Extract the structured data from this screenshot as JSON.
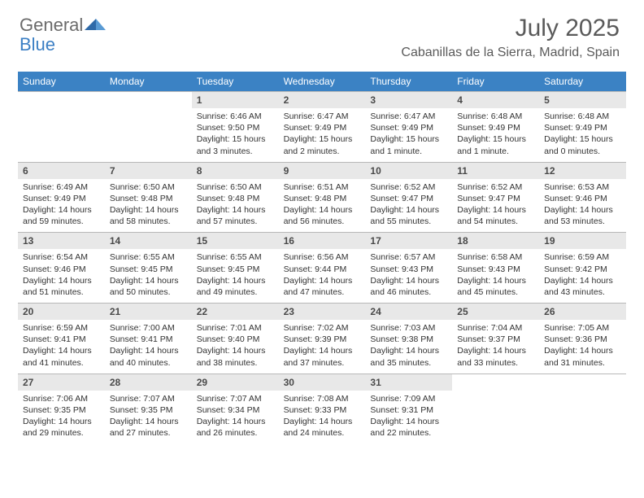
{
  "logo": {
    "general": "General",
    "blue": "Blue"
  },
  "title": "July 2025",
  "location": "Cabanillas de la Sierra, Madrid, Spain",
  "colors": {
    "header_bg": "#3b82c4",
    "header_text": "#ffffff",
    "daynum_bg": "#e8e8e8",
    "daynum_text": "#4a4a4a",
    "body_text": "#333333",
    "title_text": "#5a5a5a",
    "logo_gray": "#6b6b6b",
    "logo_blue": "#3b7fc4",
    "border": "#b8b8b8"
  },
  "weekdays": [
    "Sunday",
    "Monday",
    "Tuesday",
    "Wednesday",
    "Thursday",
    "Friday",
    "Saturday"
  ],
  "weeks": [
    [
      {
        "empty": true
      },
      {
        "empty": true
      },
      {
        "day": "1",
        "sunrise": "Sunrise: 6:46 AM",
        "sunset": "Sunset: 9:50 PM",
        "daylight": "Daylight: 15 hours and 3 minutes."
      },
      {
        "day": "2",
        "sunrise": "Sunrise: 6:47 AM",
        "sunset": "Sunset: 9:49 PM",
        "daylight": "Daylight: 15 hours and 2 minutes."
      },
      {
        "day": "3",
        "sunrise": "Sunrise: 6:47 AM",
        "sunset": "Sunset: 9:49 PM",
        "daylight": "Daylight: 15 hours and 1 minute."
      },
      {
        "day": "4",
        "sunrise": "Sunrise: 6:48 AM",
        "sunset": "Sunset: 9:49 PM",
        "daylight": "Daylight: 15 hours and 1 minute."
      },
      {
        "day": "5",
        "sunrise": "Sunrise: 6:48 AM",
        "sunset": "Sunset: 9:49 PM",
        "daylight": "Daylight: 15 hours and 0 minutes."
      }
    ],
    [
      {
        "day": "6",
        "sunrise": "Sunrise: 6:49 AM",
        "sunset": "Sunset: 9:49 PM",
        "daylight": "Daylight: 14 hours and 59 minutes."
      },
      {
        "day": "7",
        "sunrise": "Sunrise: 6:50 AM",
        "sunset": "Sunset: 9:48 PM",
        "daylight": "Daylight: 14 hours and 58 minutes."
      },
      {
        "day": "8",
        "sunrise": "Sunrise: 6:50 AM",
        "sunset": "Sunset: 9:48 PM",
        "daylight": "Daylight: 14 hours and 57 minutes."
      },
      {
        "day": "9",
        "sunrise": "Sunrise: 6:51 AM",
        "sunset": "Sunset: 9:48 PM",
        "daylight": "Daylight: 14 hours and 56 minutes."
      },
      {
        "day": "10",
        "sunrise": "Sunrise: 6:52 AM",
        "sunset": "Sunset: 9:47 PM",
        "daylight": "Daylight: 14 hours and 55 minutes."
      },
      {
        "day": "11",
        "sunrise": "Sunrise: 6:52 AM",
        "sunset": "Sunset: 9:47 PM",
        "daylight": "Daylight: 14 hours and 54 minutes."
      },
      {
        "day": "12",
        "sunrise": "Sunrise: 6:53 AM",
        "sunset": "Sunset: 9:46 PM",
        "daylight": "Daylight: 14 hours and 53 minutes."
      }
    ],
    [
      {
        "day": "13",
        "sunrise": "Sunrise: 6:54 AM",
        "sunset": "Sunset: 9:46 PM",
        "daylight": "Daylight: 14 hours and 51 minutes."
      },
      {
        "day": "14",
        "sunrise": "Sunrise: 6:55 AM",
        "sunset": "Sunset: 9:45 PM",
        "daylight": "Daylight: 14 hours and 50 minutes."
      },
      {
        "day": "15",
        "sunrise": "Sunrise: 6:55 AM",
        "sunset": "Sunset: 9:45 PM",
        "daylight": "Daylight: 14 hours and 49 minutes."
      },
      {
        "day": "16",
        "sunrise": "Sunrise: 6:56 AM",
        "sunset": "Sunset: 9:44 PM",
        "daylight": "Daylight: 14 hours and 47 minutes."
      },
      {
        "day": "17",
        "sunrise": "Sunrise: 6:57 AM",
        "sunset": "Sunset: 9:43 PM",
        "daylight": "Daylight: 14 hours and 46 minutes."
      },
      {
        "day": "18",
        "sunrise": "Sunrise: 6:58 AM",
        "sunset": "Sunset: 9:43 PM",
        "daylight": "Daylight: 14 hours and 45 minutes."
      },
      {
        "day": "19",
        "sunrise": "Sunrise: 6:59 AM",
        "sunset": "Sunset: 9:42 PM",
        "daylight": "Daylight: 14 hours and 43 minutes."
      }
    ],
    [
      {
        "day": "20",
        "sunrise": "Sunrise: 6:59 AM",
        "sunset": "Sunset: 9:41 PM",
        "daylight": "Daylight: 14 hours and 41 minutes."
      },
      {
        "day": "21",
        "sunrise": "Sunrise: 7:00 AM",
        "sunset": "Sunset: 9:41 PM",
        "daylight": "Daylight: 14 hours and 40 minutes."
      },
      {
        "day": "22",
        "sunrise": "Sunrise: 7:01 AM",
        "sunset": "Sunset: 9:40 PM",
        "daylight": "Daylight: 14 hours and 38 minutes."
      },
      {
        "day": "23",
        "sunrise": "Sunrise: 7:02 AM",
        "sunset": "Sunset: 9:39 PM",
        "daylight": "Daylight: 14 hours and 37 minutes."
      },
      {
        "day": "24",
        "sunrise": "Sunrise: 7:03 AM",
        "sunset": "Sunset: 9:38 PM",
        "daylight": "Daylight: 14 hours and 35 minutes."
      },
      {
        "day": "25",
        "sunrise": "Sunrise: 7:04 AM",
        "sunset": "Sunset: 9:37 PM",
        "daylight": "Daylight: 14 hours and 33 minutes."
      },
      {
        "day": "26",
        "sunrise": "Sunrise: 7:05 AM",
        "sunset": "Sunset: 9:36 PM",
        "daylight": "Daylight: 14 hours and 31 minutes."
      }
    ],
    [
      {
        "day": "27",
        "sunrise": "Sunrise: 7:06 AM",
        "sunset": "Sunset: 9:35 PM",
        "daylight": "Daylight: 14 hours and 29 minutes."
      },
      {
        "day": "28",
        "sunrise": "Sunrise: 7:07 AM",
        "sunset": "Sunset: 9:35 PM",
        "daylight": "Daylight: 14 hours and 27 minutes."
      },
      {
        "day": "29",
        "sunrise": "Sunrise: 7:07 AM",
        "sunset": "Sunset: 9:34 PM",
        "daylight": "Daylight: 14 hours and 26 minutes."
      },
      {
        "day": "30",
        "sunrise": "Sunrise: 7:08 AM",
        "sunset": "Sunset: 9:33 PM",
        "daylight": "Daylight: 14 hours and 24 minutes."
      },
      {
        "day": "31",
        "sunrise": "Sunrise: 7:09 AM",
        "sunset": "Sunset: 9:31 PM",
        "daylight": "Daylight: 14 hours and 22 minutes."
      },
      {
        "empty": true
      },
      {
        "empty": true
      }
    ]
  ]
}
